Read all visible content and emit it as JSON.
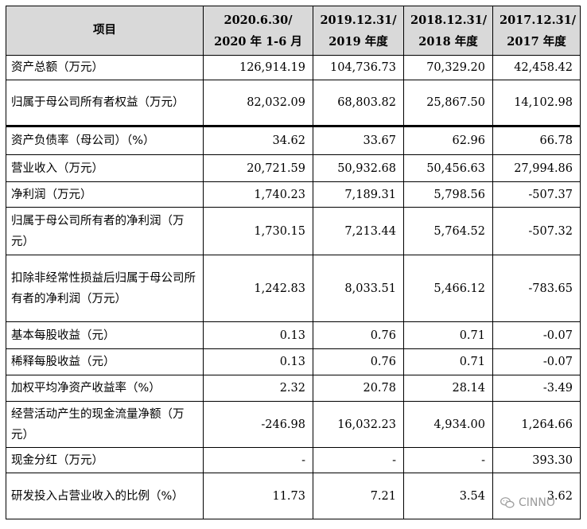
{
  "header": {
    "item": "项目",
    "periods": [
      [
        "2020.6.30/",
        "2020 年 1-6 月"
      ],
      [
        "2019.12.31/",
        "2019 年度"
      ],
      [
        "2018.12.31/",
        "2018 年度"
      ],
      [
        "2017.12.31/",
        "2017 年度"
      ]
    ]
  },
  "rows": [
    {
      "label": "资产总额（万元）",
      "values": [
        "126,914.19",
        "104,736.73",
        "70,329.20",
        "42,458.42"
      ]
    },
    {
      "label": "归属于母公司所有者权益（万元）",
      "values": [
        "82,032.09",
        "68,803.82",
        "25,867.50",
        "14,102.98"
      ]
    },
    {
      "label": "资产负债率（母公司）（%）",
      "values": [
        "34.62",
        "33.67",
        "62.96",
        "66.78"
      ]
    },
    {
      "label": "营业收入（万元）",
      "values": [
        "20,721.59",
        "50,932.68",
        "50,456.63",
        "27,994.86"
      ]
    },
    {
      "label": "净利润（万元）",
      "values": [
        "1,740.23",
        "7,189.31",
        "5,798.56",
        "-507.37"
      ]
    },
    {
      "label": "归属于母公司所有者的净利润（万元）",
      "values": [
        "1,730.15",
        "7,213.44",
        "5,764.52",
        "-507.32"
      ]
    },
    {
      "label": "扣除非经常性损益后归属于母公司所有者的净利润（万元）",
      "values": [
        "1,242.83",
        "8,033.51",
        "5,466.12",
        "-783.65"
      ]
    },
    {
      "label": "基本每股收益（元）",
      "values": [
        "0.13",
        "0.76",
        "0.71",
        "-0.07"
      ]
    },
    {
      "label": "稀释每股收益（元）",
      "values": [
        "0.13",
        "0.76",
        "0.71",
        "-0.07"
      ]
    },
    {
      "label": "加权平均净资产收益率（%）",
      "values": [
        "2.32",
        "20.78",
        "28.14",
        "-3.49"
      ]
    },
    {
      "label": "经营活动产生的现金流量净额（万元）",
      "values": [
        "-246.98",
        "16,032.23",
        "4,934.00",
        "1,264.66"
      ]
    },
    {
      "label": "现金分红（万元）",
      "values": [
        "-",
        "-",
        "-",
        "393.30"
      ]
    },
    {
      "label": "研发投入占营业收入的比例（%）",
      "values": [
        "11.73",
        "7.21",
        "3.54",
        "3.62"
      ]
    }
  ],
  "watermark": {
    "text": "CINNO",
    "icon": "wechat-icon"
  }
}
